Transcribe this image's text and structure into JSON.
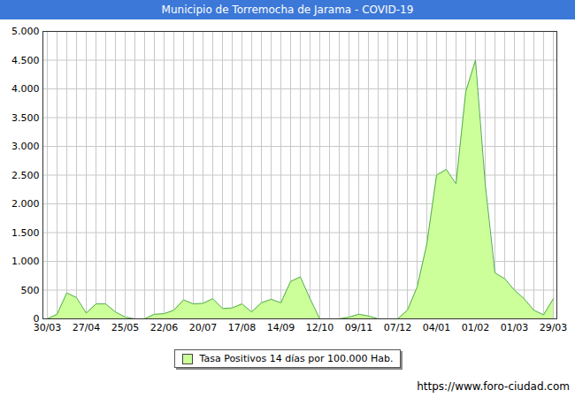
{
  "chart_data": {
    "type": "area",
    "title": "Municipio de Torremocha de Jarama - COVID-19",
    "caption": "https://www.foro-ciudad.com",
    "legend": "bottom",
    "grid": true,
    "categories": [
      "30/03",
      null,
      null,
      null,
      "27/04",
      null,
      null,
      null,
      "25/05",
      null,
      null,
      null,
      "22/06",
      null,
      null,
      null,
      "20/07",
      null,
      null,
      null,
      "17/08",
      null,
      null,
      null,
      "14/09",
      null,
      null,
      null,
      "12/10",
      null,
      null,
      null,
      "09/11",
      null,
      null,
      null,
      "07/12",
      null,
      null,
      null,
      "04/01",
      null,
      null,
      null,
      "01/02",
      null,
      null,
      null,
      "01/03",
      null,
      null,
      null,
      "29/03"
    ],
    "series": [
      {
        "name": "Tasa Positivos 14 días por 100.000 Hab.",
        "color": "#ccff99",
        "values": [
          0,
          80,
          450,
          370,
          100,
          260,
          260,
          120,
          30,
          0,
          0,
          80,
          90,
          150,
          330,
          260,
          270,
          350,
          180,
          190,
          260,
          120,
          280,
          340,
          280,
          650,
          730,
          350,
          0,
          0,
          0,
          30,
          80,
          50,
          0,
          0,
          0,
          150,
          550,
          1300,
          2500,
          2600,
          2350,
          3950,
          4500,
          2350,
          800,
          700,
          500,
          350,
          150,
          70,
          350
        ]
      }
    ],
    "ylim": [
      0,
      5000
    ],
    "yticks": [
      0,
      500,
      {
        "value": 1000,
        "label": "1.000"
      },
      {
        "value": 1500,
        "label": "1.500"
      },
      {
        "value": 2000,
        "label": "2.000"
      },
      {
        "value": 2500,
        "label": "2.500"
      },
      {
        "value": 3000,
        "label": "3.000"
      },
      {
        "value": 3500,
        "label": "3.500"
      },
      {
        "value": 4000,
        "label": "4.000"
      },
      {
        "value": 4500,
        "label": "4.500"
      },
      {
        "value": 5000,
        "label": "5.000"
      }
    ]
  }
}
